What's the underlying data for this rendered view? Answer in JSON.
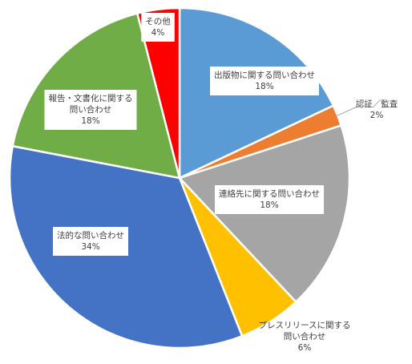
{
  "chart_data": {
    "type": "pie",
    "title": "",
    "slices": [
      {
        "name": "出版物に関する問い合わせ",
        "lines": [
          "出版物に関する問い合わせ"
        ],
        "value": 18,
        "label": "18%",
        "color": "#5B9BD5"
      },
      {
        "name": "認証／監査",
        "lines": [
          "認証／監査"
        ],
        "value": 2,
        "label": "2%",
        "color": "#ED7D31"
      },
      {
        "name": "連絡先に関する問い合わせ",
        "lines": [
          "連絡先に関する問い合わせ"
        ],
        "value": 18,
        "label": "18%",
        "color": "#A5A5A5"
      },
      {
        "name": "プレスリリースに関する問い合わせ",
        "lines": [
          "プレスリリースに関する",
          "問い合わせ"
        ],
        "value": 6,
        "label": "6%",
        "color": "#FFC000"
      },
      {
        "name": "法的な問い合わせ",
        "lines": [
          "法的な問い合わせ"
        ],
        "value": 34,
        "label": "34%",
        "color": "#4472C4"
      },
      {
        "name": "報告・文書化に関する問い合わせ",
        "lines": [
          "報告・文書化に関する",
          "問い合わせ"
        ],
        "value": 18,
        "label": "18%",
        "color": "#70AD47"
      },
      {
        "name": "その他",
        "lines": [
          "その他"
        ],
        "value": 4,
        "label": "4%",
        "color": "#FF0000"
      }
    ]
  }
}
